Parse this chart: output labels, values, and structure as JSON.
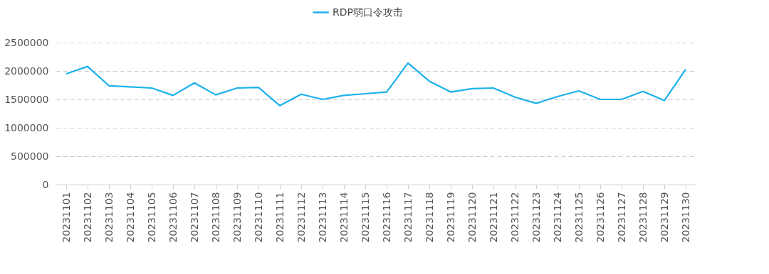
{
  "chart_data": {
    "type": "line",
    "categories": [
      "20231101",
      "20231102",
      "20231103",
      "20231104",
      "20231105",
      "20231106",
      "20231107",
      "20231108",
      "20231109",
      "20231110",
      "20231111",
      "20231112",
      "20231113",
      "20231114",
      "20231115",
      "20231116",
      "20231117",
      "20231118",
      "20231119",
      "20231120",
      "20231121",
      "20231122",
      "20231123",
      "20231124",
      "20231125",
      "20231126",
      "20231127",
      "20231128",
      "20231129",
      "20231130"
    ],
    "series": [
      {
        "name": "RDP弱口令攻击",
        "color": "#1bb1ec",
        "values": [
          1950000,
          2080000,
          1740000,
          1720000,
          1700000,
          1570000,
          1790000,
          1580000,
          1700000,
          1710000,
          1390000,
          1590000,
          1500000,
          1570000,
          1600000,
          1630000,
          2140000,
          1820000,
          1630000,
          1690000,
          1700000,
          1540000,
          1430000,
          1550000,
          1650000,
          1500000,
          1500000,
          1640000,
          1480000,
          2030000
        ]
      }
    ],
    "ylim": [
      0,
      2500000
    ],
    "yticks": [
      0,
      500000,
      1000000,
      1500000,
      2000000,
      2500000
    ],
    "grid": "y",
    "legend": "top",
    "marker": "none",
    "line_style": "solid"
  }
}
